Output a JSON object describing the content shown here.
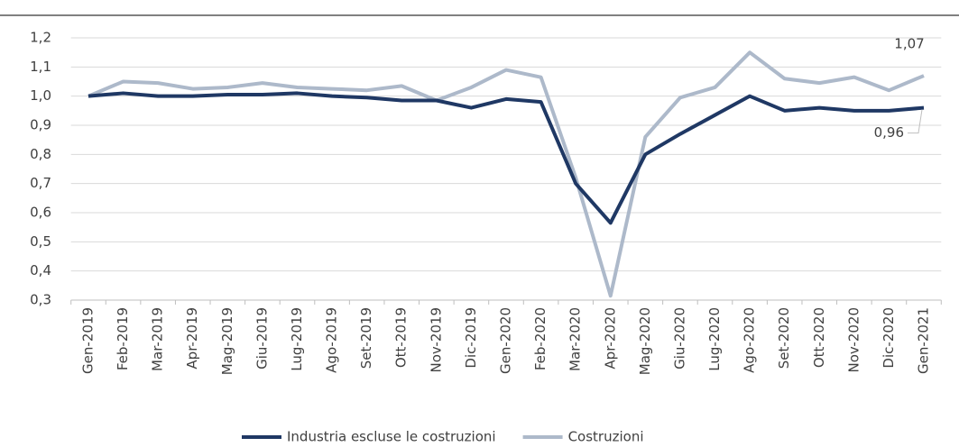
{
  "chart_data": {
    "type": "line",
    "categories": [
      "Gen-2019",
      "Feb-2019",
      "Mar-2019",
      "Apr-2019",
      "Mag-2019",
      "Giu-2019",
      "Lug-2019",
      "Ago-2019",
      "Set-2019",
      "Ott-2019",
      "Nov-2019",
      "Dic-2019",
      "Gen-2020",
      "Feb-2020",
      "Mar-2020",
      "Apr-2020",
      "Mag-2020",
      "Giu-2020",
      "Lug-2020",
      "Ago-2020",
      "Set-2020",
      "Ott-2020",
      "Nov-2020",
      "Dic-2020",
      "Gen-2021"
    ],
    "series": [
      {
        "name": "Industria escluse le costruzioni",
        "color": "#1f3864",
        "values": [
          1.0,
          1.01,
          1.0,
          1.0,
          1.005,
          1.005,
          1.01,
          1.0,
          0.995,
          0.985,
          0.985,
          0.96,
          0.99,
          0.98,
          0.7,
          0.565,
          0.8,
          0.87,
          0.935,
          1.0,
          0.95,
          0.96,
          0.95,
          0.95,
          0.96
        ],
        "value_labels": [
          null,
          null,
          null,
          null,
          null,
          null,
          null,
          null,
          null,
          null,
          null,
          null,
          null,
          null,
          null,
          null,
          null,
          null,
          null,
          null,
          null,
          null,
          null,
          null,
          "0,96"
        ]
      },
      {
        "name": "Costruzioni",
        "color": "#adb9ca",
        "values": [
          1.0,
          1.05,
          1.045,
          1.025,
          1.03,
          1.045,
          1.03,
          1.025,
          1.02,
          1.035,
          0.985,
          1.03,
          1.09,
          1.065,
          0.72,
          0.315,
          0.86,
          0.995,
          1.03,
          1.15,
          1.06,
          1.045,
          1.065,
          1.02,
          1.07
        ],
        "value_labels": [
          null,
          null,
          null,
          null,
          null,
          null,
          null,
          null,
          null,
          null,
          null,
          null,
          null,
          null,
          null,
          null,
          null,
          null,
          null,
          null,
          null,
          null,
          null,
          null,
          "1,07"
        ]
      }
    ],
    "ylim": [
      0.3,
      1.2
    ],
    "yticks": [
      {
        "value": 0.3,
        "label": "0,3"
      },
      {
        "value": 0.4,
        "label": "0,4"
      },
      {
        "value": 0.5,
        "label": "0,5"
      },
      {
        "value": 0.6,
        "label": "0,6"
      },
      {
        "value": 0.7,
        "label": "0,7"
      },
      {
        "value": 0.8,
        "label": "0,8"
      },
      {
        "value": 0.9,
        "label": "0,9"
      },
      {
        "value": 1.0,
        "label": "1,0"
      },
      {
        "value": 1.1,
        "label": "1,1"
      },
      {
        "value": 1.2,
        "label": "1,2"
      }
    ],
    "grid": true,
    "legend": "bottom"
  }
}
